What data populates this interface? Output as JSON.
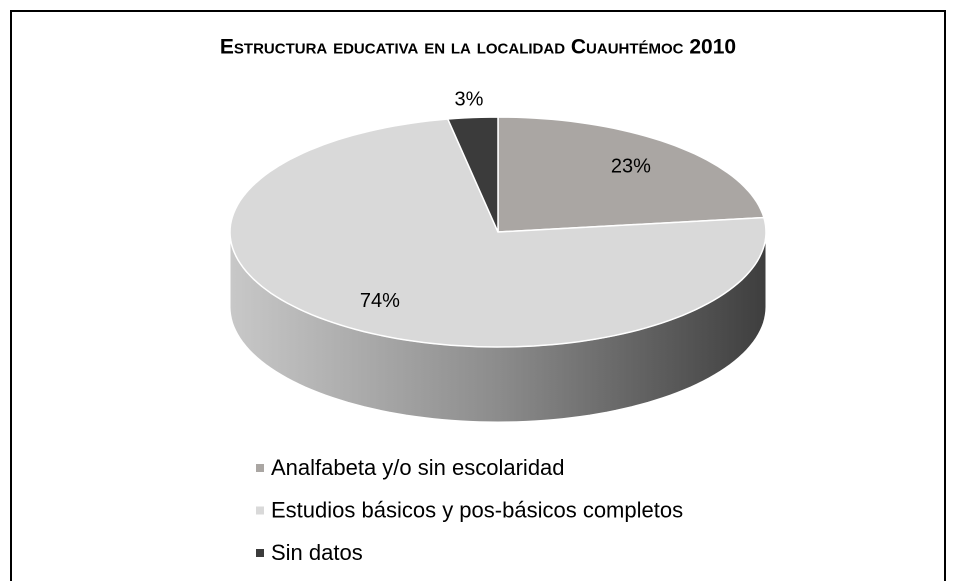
{
  "chart_data": {
    "type": "pie3d",
    "title": "Estructura educativa en la localidad Cuauhtémoc 2010",
    "categories": [
      "Analfabeta y/o sin escolaridad",
      "Estudios básicos y pos-básicos completos",
      "Sin datos"
    ],
    "values": [
      23,
      74,
      3
    ],
    "value_labels": [
      "23%",
      "74%",
      "3%"
    ],
    "colors": [
      "#aaa6a3",
      "#d9d9d9",
      "#3b3b3b"
    ],
    "legend": "bottom"
  }
}
